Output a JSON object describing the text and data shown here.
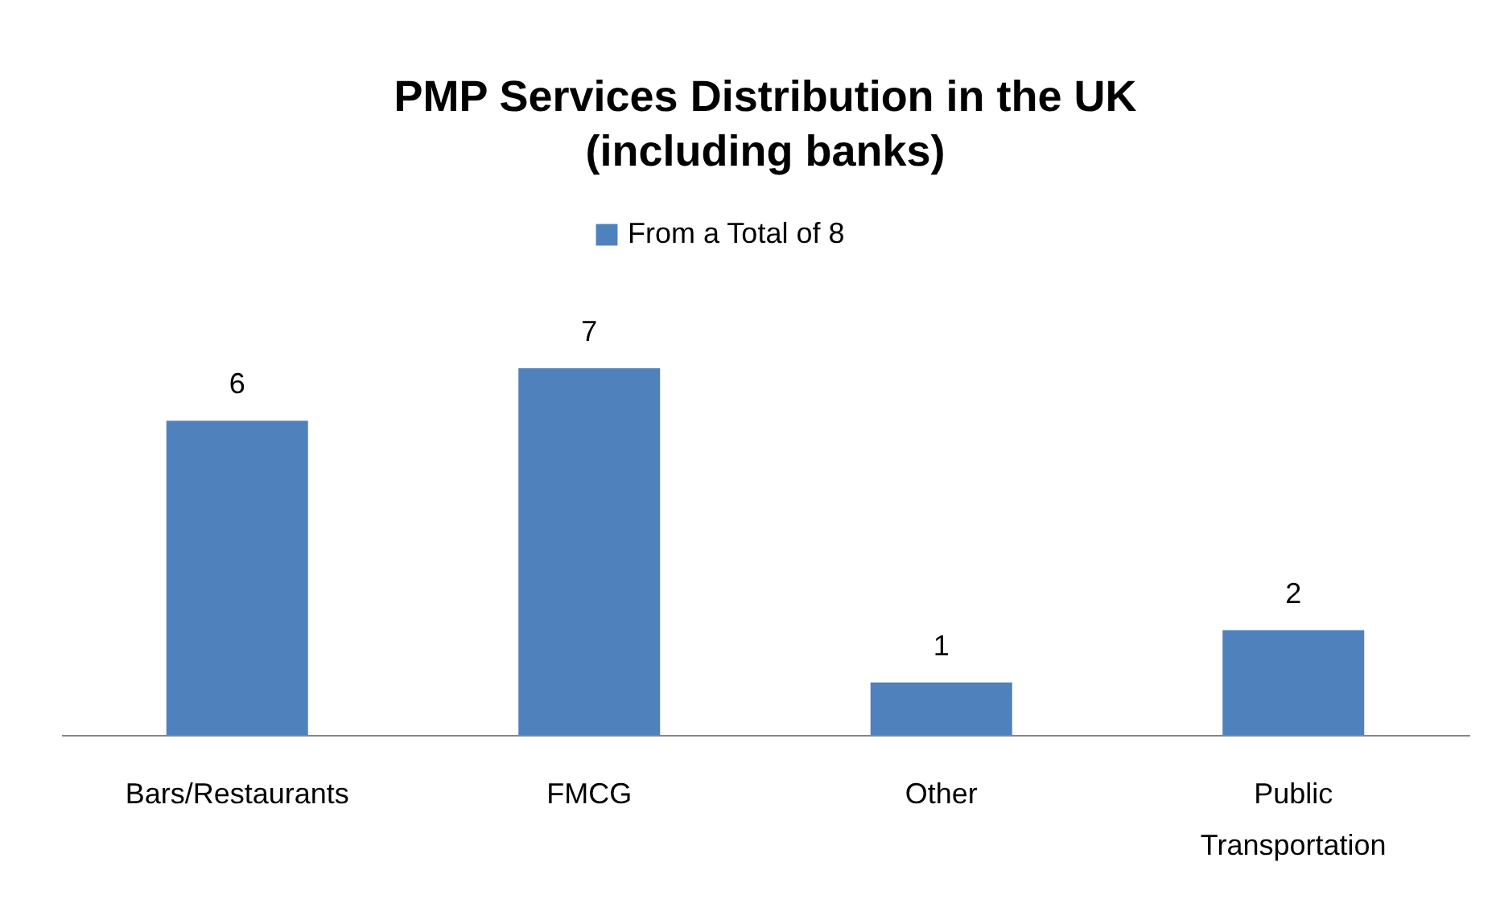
{
  "chart_data": {
    "type": "bar",
    "title": "PMP Services Distribution in the UK (including banks)",
    "categories": [
      "Bars/Restaurants",
      "FMCG",
      "Other",
      "Public Transportation"
    ],
    "series": [
      {
        "name": "From a Total of 8",
        "color": "#4f81bd",
        "values": [
          6,
          7,
          1,
          2
        ]
      }
    ],
    "data_labels": true,
    "legend": "top",
    "grid": false
  }
}
